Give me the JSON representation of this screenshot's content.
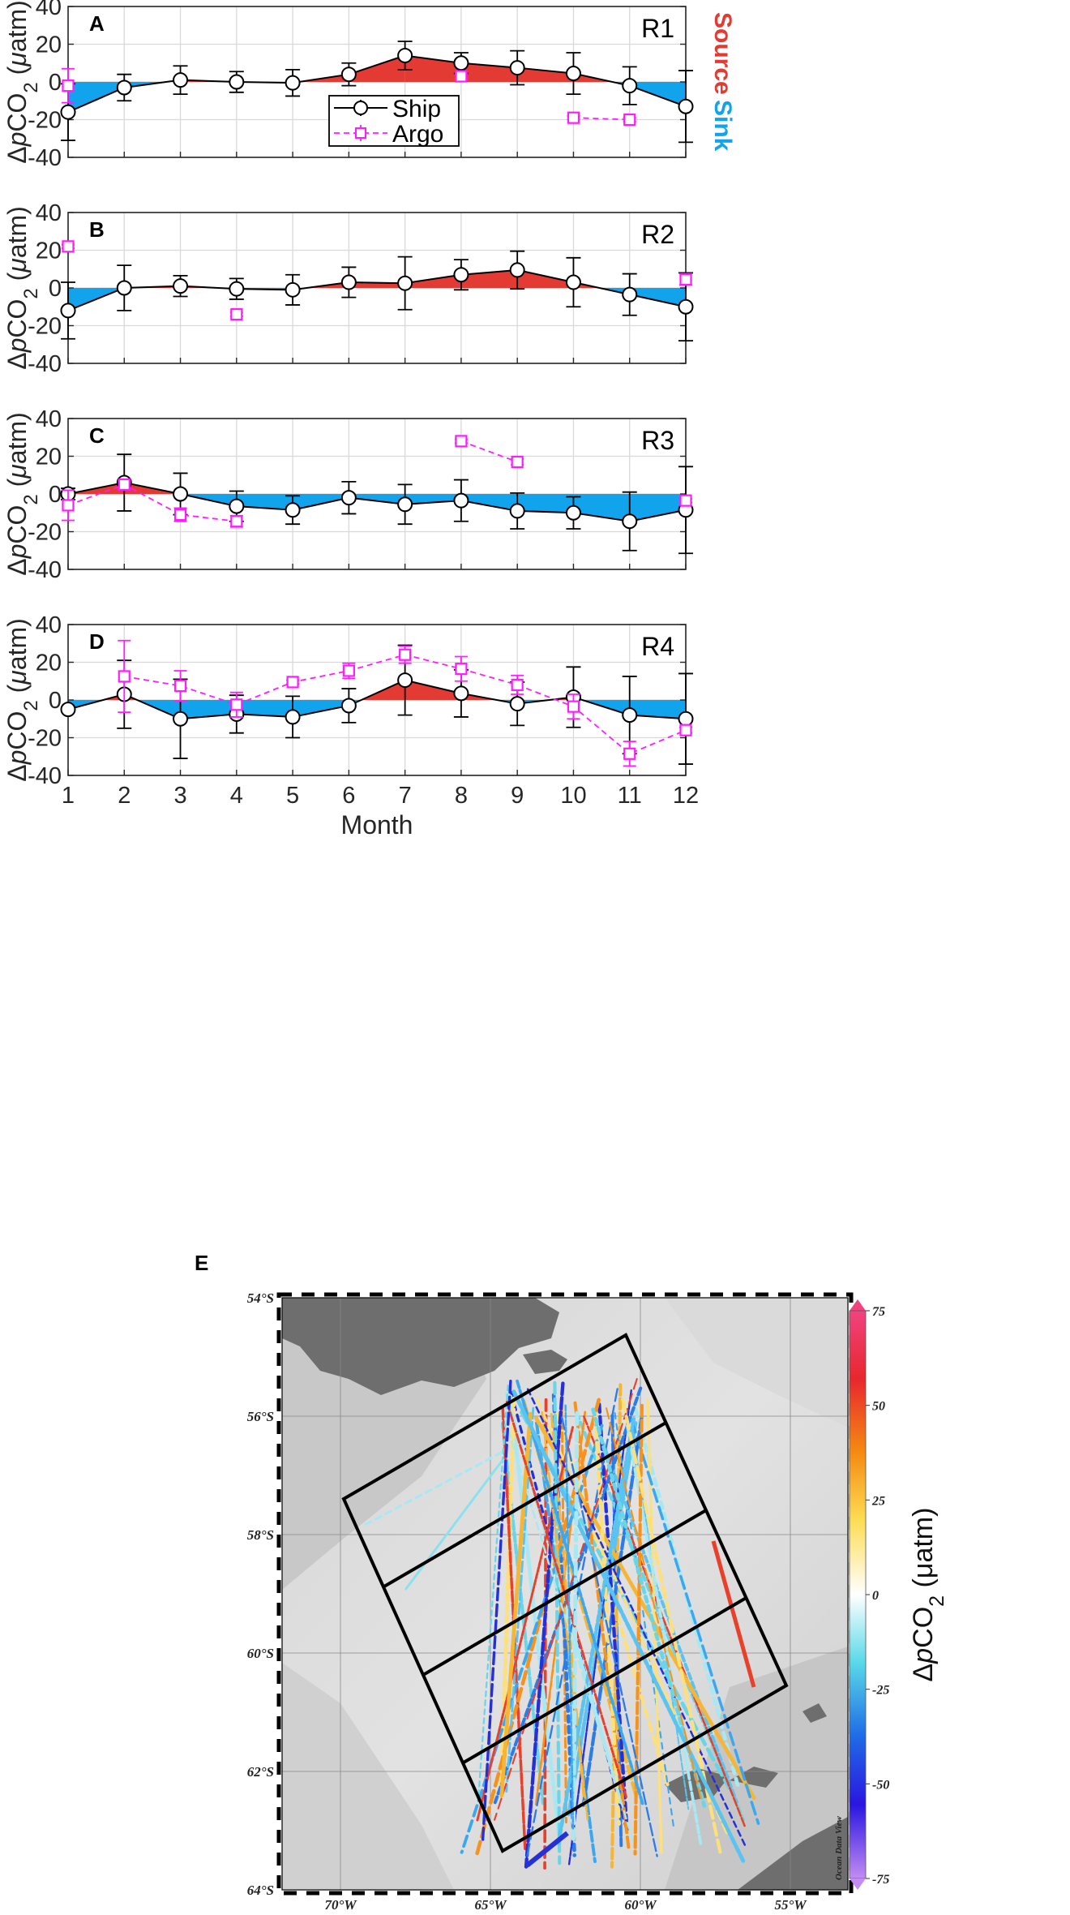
{
  "chart_data": [
    {
      "type": "area",
      "panel": "A",
      "region": "R1",
      "xlabel": "",
      "ylabel": "ΔpCO2 (μatm)",
      "ylabel_parts": [
        "Δ",
        "p",
        "CO",
        "2",
        " (",
        "μ",
        "atm)"
      ],
      "xlim": [
        1,
        12
      ],
      "ylim": [
        -40,
        40
      ],
      "yticks": [
        "-40",
        "-20",
        "0",
        "20",
        "40"
      ],
      "side_labels": {
        "source": "Source",
        "sink": "Sink"
      },
      "legend": {
        "ship": "Ship",
        "argo": "Argo"
      },
      "series": [
        {
          "name": "Ship",
          "x": [
            1,
            2,
            3,
            4,
            5,
            6,
            7,
            8,
            9,
            10,
            11,
            12
          ],
          "values": [
            -16,
            -3,
            1,
            0,
            -0.5,
            4,
            14,
            10,
            7.5,
            4.5,
            -2,
            -13
          ],
          "err": [
            15,
            7,
            7.5,
            5.5,
            7,
            6,
            7.5,
            5.5,
            9,
            11,
            10,
            19
          ]
        },
        {
          "name": "Argo",
          "segments": [
            {
              "x": [
                1
              ],
              "values": [
                -2
              ],
              "err": [
                9
              ]
            },
            {
              "x": [
                8
              ],
              "values": [
                3
              ],
              "err": [
                1.5
              ]
            },
            {
              "x": [
                10,
                11
              ],
              "values": [
                -19,
                -20
              ],
              "err": [
                1,
                1
              ]
            }
          ]
        }
      ]
    },
    {
      "type": "area",
      "panel": "B",
      "region": "R2",
      "xlabel": "",
      "ylabel": "ΔpCO2 (μatm)",
      "ylabel_parts": [
        "Δ",
        "p",
        "CO",
        "2",
        " (",
        "μ",
        "atm)"
      ],
      "xlim": [
        1,
        12
      ],
      "ylim": [
        -40,
        40
      ],
      "yticks": [
        "-40",
        "-20",
        "0",
        "20",
        "40"
      ],
      "series": [
        {
          "name": "Ship",
          "x": [
            1,
            2,
            3,
            4,
            5,
            6,
            7,
            8,
            9,
            10,
            11,
            12
          ],
          "values": [
            -12,
            0,
            1,
            -0.5,
            -1,
            3,
            2.5,
            7,
            9.5,
            3,
            -3.5,
            -10
          ],
          "err": [
            15,
            12,
            5.5,
            5.5,
            8,
            8,
            14,
            8,
            10,
            13,
            11,
            18
          ]
        },
        {
          "name": "Argo",
          "segments": [
            {
              "x": [
                1
              ],
              "values": [
                22
              ],
              "err": [
                1
              ]
            },
            {
              "x": [
                4
              ],
              "values": [
                -14
              ],
              "err": [
                1
              ]
            },
            {
              "x": [
                12
              ],
              "values": [
                4.5
              ],
              "err": [
                3
              ]
            }
          ]
        }
      ]
    },
    {
      "type": "area",
      "panel": "C",
      "region": "R3",
      "xlabel": "",
      "ylabel": "ΔpCO2 (μatm)",
      "ylabel_parts": [
        "Δ",
        "p",
        "CO",
        "2",
        " (",
        "μ",
        "atm)"
      ],
      "xlim": [
        1,
        12
      ],
      "ylim": [
        -40,
        40
      ],
      "yticks": [
        "-40",
        "-20",
        "0",
        "20",
        "40"
      ],
      "series": [
        {
          "name": "Ship",
          "x": [
            1,
            2,
            3,
            4,
            5,
            6,
            7,
            8,
            9,
            10,
            11,
            12
          ],
          "values": [
            0,
            6,
            0,
            -6.5,
            -8.5,
            -2,
            -5.5,
            -3.5,
            -9,
            -10,
            -14.5,
            -8.5
          ],
          "err": [
            3,
            15,
            11,
            8,
            7.5,
            8.5,
            10.5,
            11,
            9.5,
            8.5,
            15.5,
            23
          ]
        },
        {
          "name": "Argo",
          "segments": [
            {
              "x": [
                1,
                2,
                3,
                4
              ],
              "values": [
                -6,
                5,
                -11,
                -14.5
              ],
              "err": [
                8,
                2,
                3.5,
                3
              ]
            },
            {
              "x": [
                8,
                9
              ],
              "values": [
                28,
                17
              ],
              "err": [
                1,
                1.5
              ]
            },
            {
              "x": [
                12
              ],
              "values": [
                -3.5
              ],
              "err": [
                1
              ]
            }
          ]
        }
      ]
    },
    {
      "type": "area",
      "panel": "D",
      "region": "R4",
      "xlabel": "Month",
      "ylabel": "ΔpCO2 (μatm)",
      "ylabel_parts": [
        "Δ",
        "p",
        "CO",
        "2",
        " (",
        "μ",
        "atm)"
      ],
      "xlim": [
        1,
        12
      ],
      "ylim": [
        -40,
        40
      ],
      "xticks": [
        "1",
        "2",
        "3",
        "4",
        "5",
        "6",
        "7",
        "8",
        "9",
        "10",
        "11",
        "12"
      ],
      "yticks": [
        "-40",
        "-20",
        "0",
        "20",
        "40"
      ],
      "series": [
        {
          "name": "Ship",
          "x": [
            1,
            2,
            3,
            4,
            5,
            6,
            7,
            8,
            9,
            10,
            11,
            12
          ],
          "values": [
            -5,
            3,
            -10,
            -7.5,
            -9,
            -3,
            10.5,
            3.5,
            -2,
            1.5,
            -8,
            -10
          ],
          "err": [
            0,
            18,
            21,
            10,
            11,
            9,
            18.5,
            12.5,
            11.5,
            16,
            20.5,
            24
          ]
        },
        {
          "name": "Argo",
          "segments": [
            {
              "x": [
                2,
                3,
                4,
                5,
                6,
                7,
                8,
                9,
                10,
                11,
                12
              ],
              "values": [
                12.5,
                7.5,
                -2.5,
                9.5,
                15.5,
                24,
                16.5,
                8,
                -3.5,
                -28.5,
                -16
              ],
              "err": [
                19,
                8,
                6.5,
                1,
                4,
                4.5,
                6.5,
                5,
                6.5,
                6.5,
                1.5
              ]
            }
          ]
        }
      ]
    },
    {
      "type": "heatmap",
      "panel": "E",
      "description_kind": "map",
      "lat_ticks": [
        "54°S",
        "56°S",
        "58°S",
        "60°S",
        "62°S",
        "64°S"
      ],
      "lon_ticks": [
        "70°W",
        "65°W",
        "60°W",
        "55°W"
      ],
      "colorbar": {
        "label": "ΔpCO2 (μatm)",
        "ticks": [
          "75",
          "50",
          "25",
          "0",
          "-25",
          "-50",
          "-75"
        ],
        "range": [
          -75,
          75
        ]
      },
      "watermark": "Ocean Data View"
    }
  ],
  "colors": {
    "source": "#e33a34",
    "sink": "#11a3eb",
    "ship": "#000000",
    "argo": "#ff1cff",
    "grid": "#d9d9d9"
  }
}
